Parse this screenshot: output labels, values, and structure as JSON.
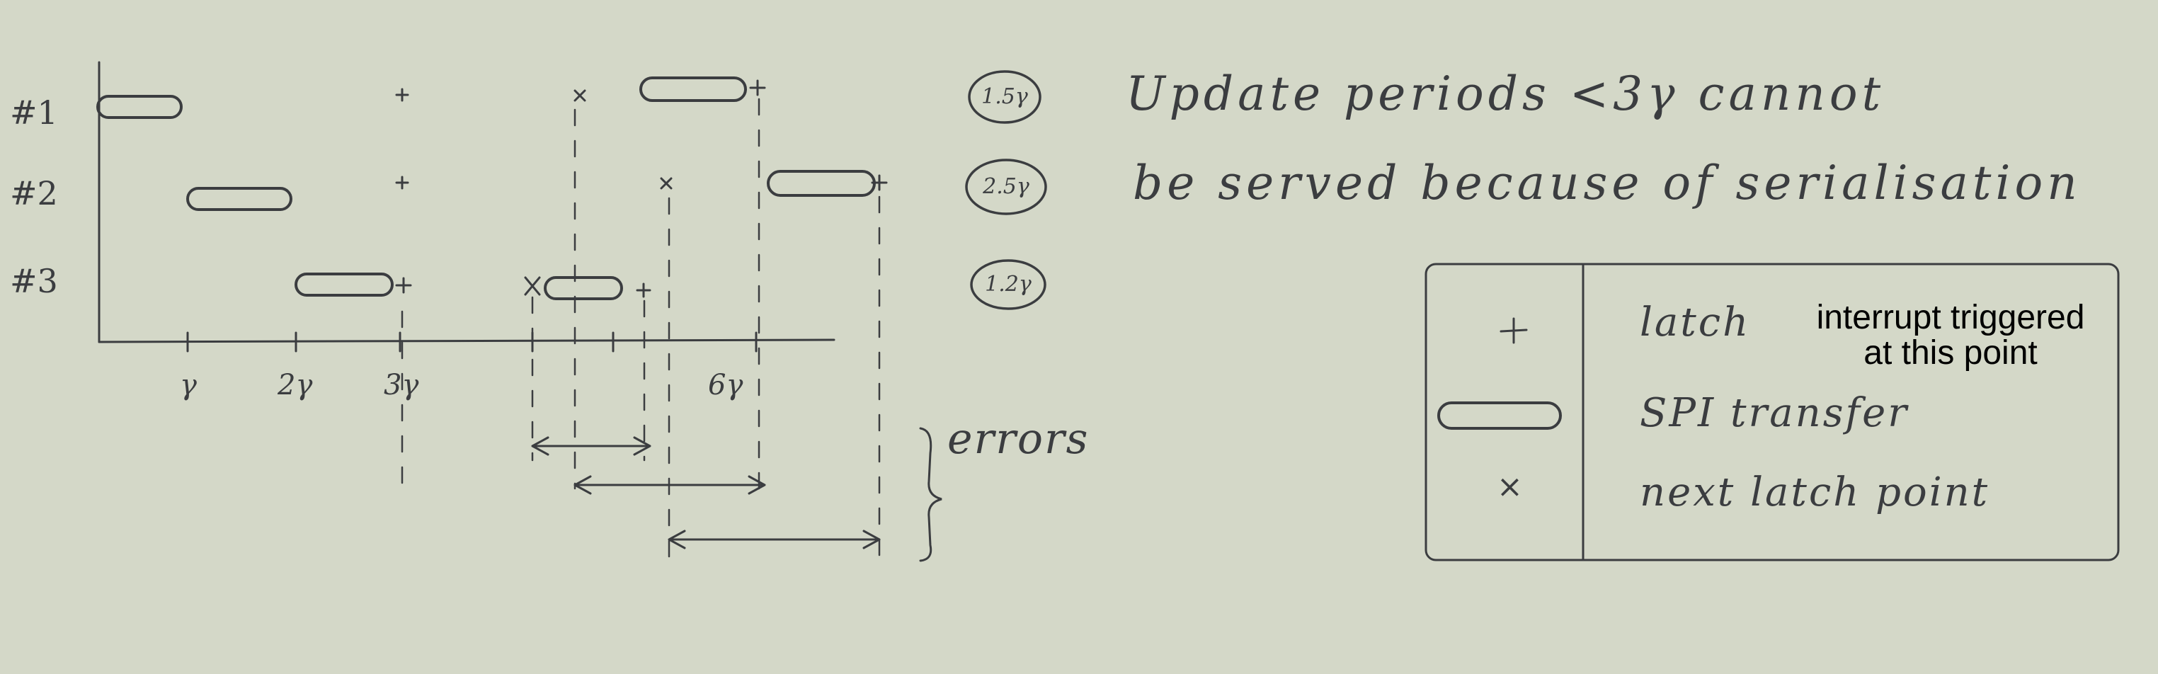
{
  "colors": {
    "paper": "#d4d8c8",
    "ink": "#3b3d40",
    "printed_text": "#000000"
  },
  "timeline": {
    "rows": [
      "#1",
      "#2",
      "#3"
    ],
    "ticks": [
      "γ",
      "2γ",
      "3γ",
      "6γ"
    ],
    "periods": [
      "1.5γ",
      "2.5γ",
      "1.2γ"
    ]
  },
  "note": {
    "line1": "Update periods <3γ cannot",
    "line2": "be served because of serialisation"
  },
  "errors_label": "errors",
  "legend": {
    "latch_symbol": "+",
    "latch_label": "latch",
    "latch_note_line1": "interrupt triggered",
    "latch_note_line2": "at this point",
    "spi_label": "SPI transfer",
    "next_symbol": "×",
    "next_label": "next latch point"
  }
}
